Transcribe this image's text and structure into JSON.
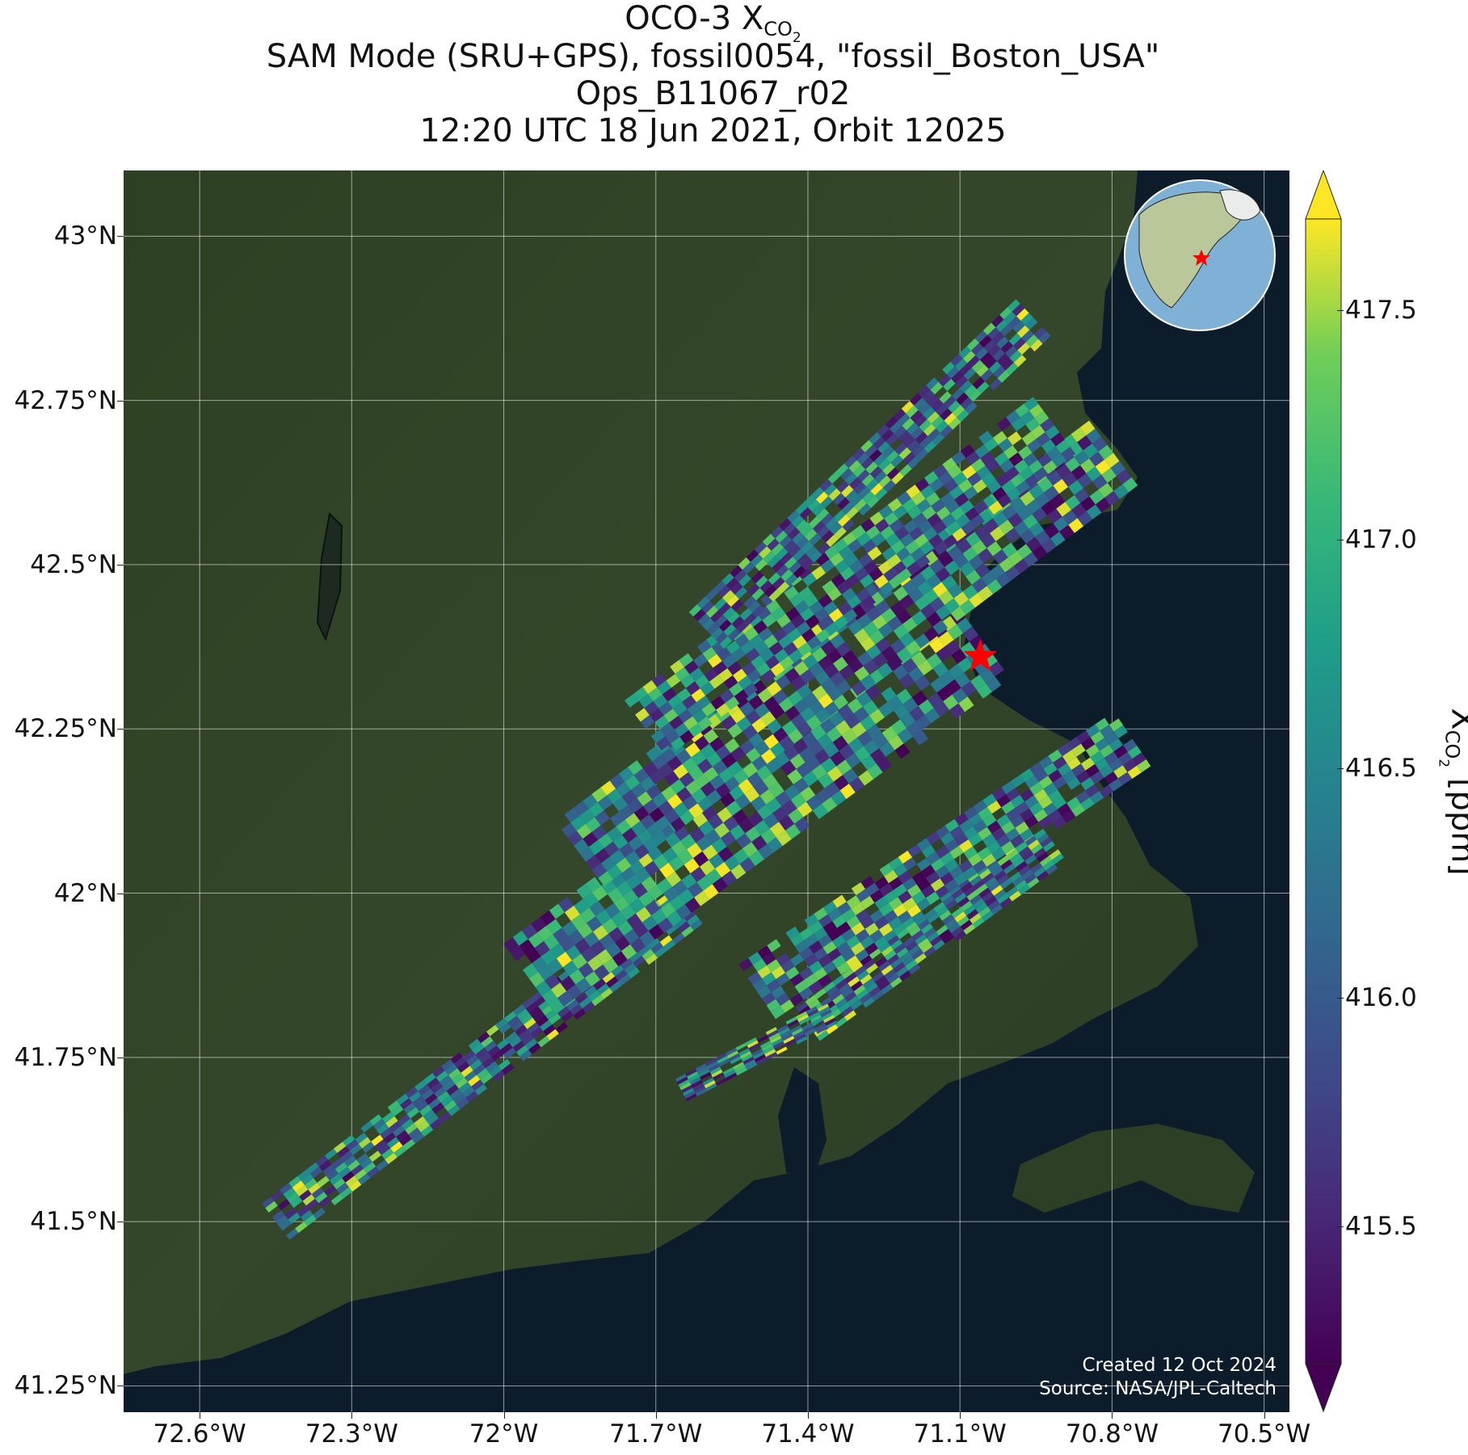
{
  "title": {
    "line1_prefix": "OCO-3 X",
    "line1_sub": "CO",
    "line1_subsub": "2",
    "line2": "SAM Mode (SRU+GPS), fossil0054, \"fossil_Boston_USA\"",
    "line3": "Ops_B11067_r02",
    "line4": "12:20 UTC 18 Jun 2021, Orbit 12025"
  },
  "map": {
    "lon_range": [
      -72.75,
      -70.45
    ],
    "lat_range": [
      41.21,
      43.1
    ],
    "gridlines": true,
    "lat_ticks": [
      {
        "value": 43.0,
        "label": "43°N"
      },
      {
        "value": 42.75,
        "label": "42.75°N"
      },
      {
        "value": 42.5,
        "label": "42.5°N"
      },
      {
        "value": 42.25,
        "label": "42.25°N"
      },
      {
        "value": 42.0,
        "label": "42°N"
      },
      {
        "value": 41.75,
        "label": "41.75°N"
      },
      {
        "value": 41.5,
        "label": "41.5°N"
      },
      {
        "value": 41.25,
        "label": "41.25°N"
      }
    ],
    "lon_ticks": [
      {
        "value": -72.6,
        "label": "72.6°W"
      },
      {
        "value": -72.3,
        "label": "72.3°W"
      },
      {
        "value": -72.0,
        "label": "72°W"
      },
      {
        "value": -71.7,
        "label": "71.7°W"
      },
      {
        "value": -71.4,
        "label": "71.4°W"
      },
      {
        "value": -71.1,
        "label": "71.1°W"
      },
      {
        "value": -70.8,
        "label": "70.8°W"
      },
      {
        "value": -70.5,
        "label": "70.5°W"
      }
    ],
    "target": {
      "lon": -71.06,
      "lat": 42.36,
      "marker": "red-star"
    },
    "colors": {
      "land": "#2b3d22",
      "ocean": "#0d1c2a",
      "star": "#ff0000"
    }
  },
  "chart_data": {
    "type": "heatmap",
    "variable": "XCO2",
    "units": "ppm",
    "colormap": "viridis",
    "vmin": 415.2,
    "vmax": 417.7,
    "extend": "both",
    "swaths": [
      {
        "from": [
          -72.45,
          41.5
        ],
        "to": [
          -71.62,
          41.99
        ],
        "width_deg": 0.09
      },
      {
        "from": [
          -71.95,
          41.87
        ],
        "to": [
          -71.05,
          42.38
        ],
        "width_deg": 0.17
      },
      {
        "from": [
          -71.85,
          42.06
        ],
        "to": [
          -70.78,
          42.68
        ],
        "width_deg": 0.16
      },
      {
        "from": [
          -71.72,
          42.25
        ],
        "to": [
          -70.9,
          42.72
        ],
        "width_deg": 0.14
      },
      {
        "from": [
          -71.6,
          42.4
        ],
        "to": [
          -70.95,
          42.88
        ],
        "width_deg": 0.1
      },
      {
        "from": [
          -71.5,
          41.85
        ],
        "to": [
          -70.75,
          42.24
        ],
        "width_deg": 0.13
      },
      {
        "from": [
          -71.4,
          41.8
        ],
        "to": [
          -70.9,
          42.08
        ],
        "width_deg": 0.08
      },
      {
        "from": [
          -71.65,
          41.7
        ],
        "to": [
          -71.35,
          41.82
        ],
        "width_deg": 0.05
      }
    ]
  },
  "colorbar": {
    "ticks": [
      {
        "value": 415.5,
        "label": "415.5"
      },
      {
        "value": 416.0,
        "label": "416.0"
      },
      {
        "value": 416.5,
        "label": "416.5"
      },
      {
        "value": 417.0,
        "label": "417.0"
      },
      {
        "value": 417.5,
        "label": "417.5"
      }
    ],
    "label_prefix": "X",
    "label_sub": "CO",
    "label_subsub": "2",
    "label_suffix": " [ppm]"
  },
  "credits": {
    "line1": "Created 12 Oct 2024",
    "line2": "Source: NASA/JPL-Caltech"
  }
}
